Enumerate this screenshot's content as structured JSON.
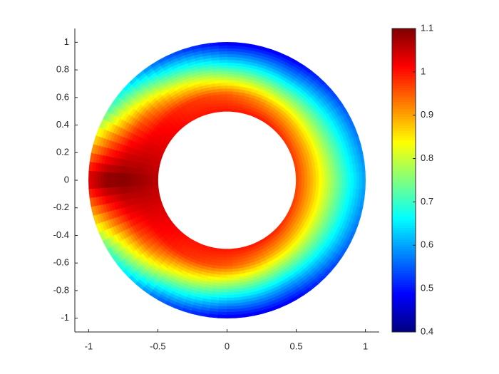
{
  "chart_data": {
    "type": "polar-contour",
    "radii": [
      0.5,
      0.625,
      0.75,
      0.875,
      1.0
    ],
    "angles": [
      0,
      30,
      60,
      90,
      120,
      150,
      180,
      210,
      240,
      270,
      300,
      330
    ],
    "field": [
      [
        0.97,
        0.98,
        1.0,
        1.0,
        1.0,
        1.03,
        1.06,
        1.03,
        1.0,
        1.0,
        1.0,
        0.98
      ],
      [
        0.88,
        0.88,
        0.9,
        0.95,
        0.98,
        1.02,
        1.08,
        1.02,
        0.98,
        0.95,
        0.9,
        0.88
      ],
      [
        0.78,
        0.76,
        0.75,
        0.78,
        0.85,
        0.97,
        1.1,
        0.97,
        0.85,
        0.78,
        0.75,
        0.76
      ],
      [
        0.68,
        0.65,
        0.6,
        0.62,
        0.7,
        0.85,
        1.1,
        0.85,
        0.7,
        0.62,
        0.6,
        0.65
      ],
      [
        0.6,
        0.55,
        0.48,
        0.47,
        0.55,
        0.72,
        1.05,
        0.72,
        0.55,
        0.47,
        0.48,
        0.55
      ]
    ],
    "colormap": "jet",
    "xlim": [
      -1.1,
      1.1
    ],
    "ylim": [
      -1.1,
      1.1
    ],
    "xticks": [
      -1,
      -0.5,
      0,
      0.5,
      1
    ],
    "yticks": [
      -1,
      -0.8,
      -0.6,
      -0.4,
      -0.2,
      0,
      0.2,
      0.4,
      0.6,
      0.8,
      1
    ],
    "clim": [
      0.4,
      1.1
    ],
    "cticks": [
      0.4,
      0.5,
      0.6,
      0.7,
      0.8,
      0.9,
      1,
      1.1
    ]
  }
}
